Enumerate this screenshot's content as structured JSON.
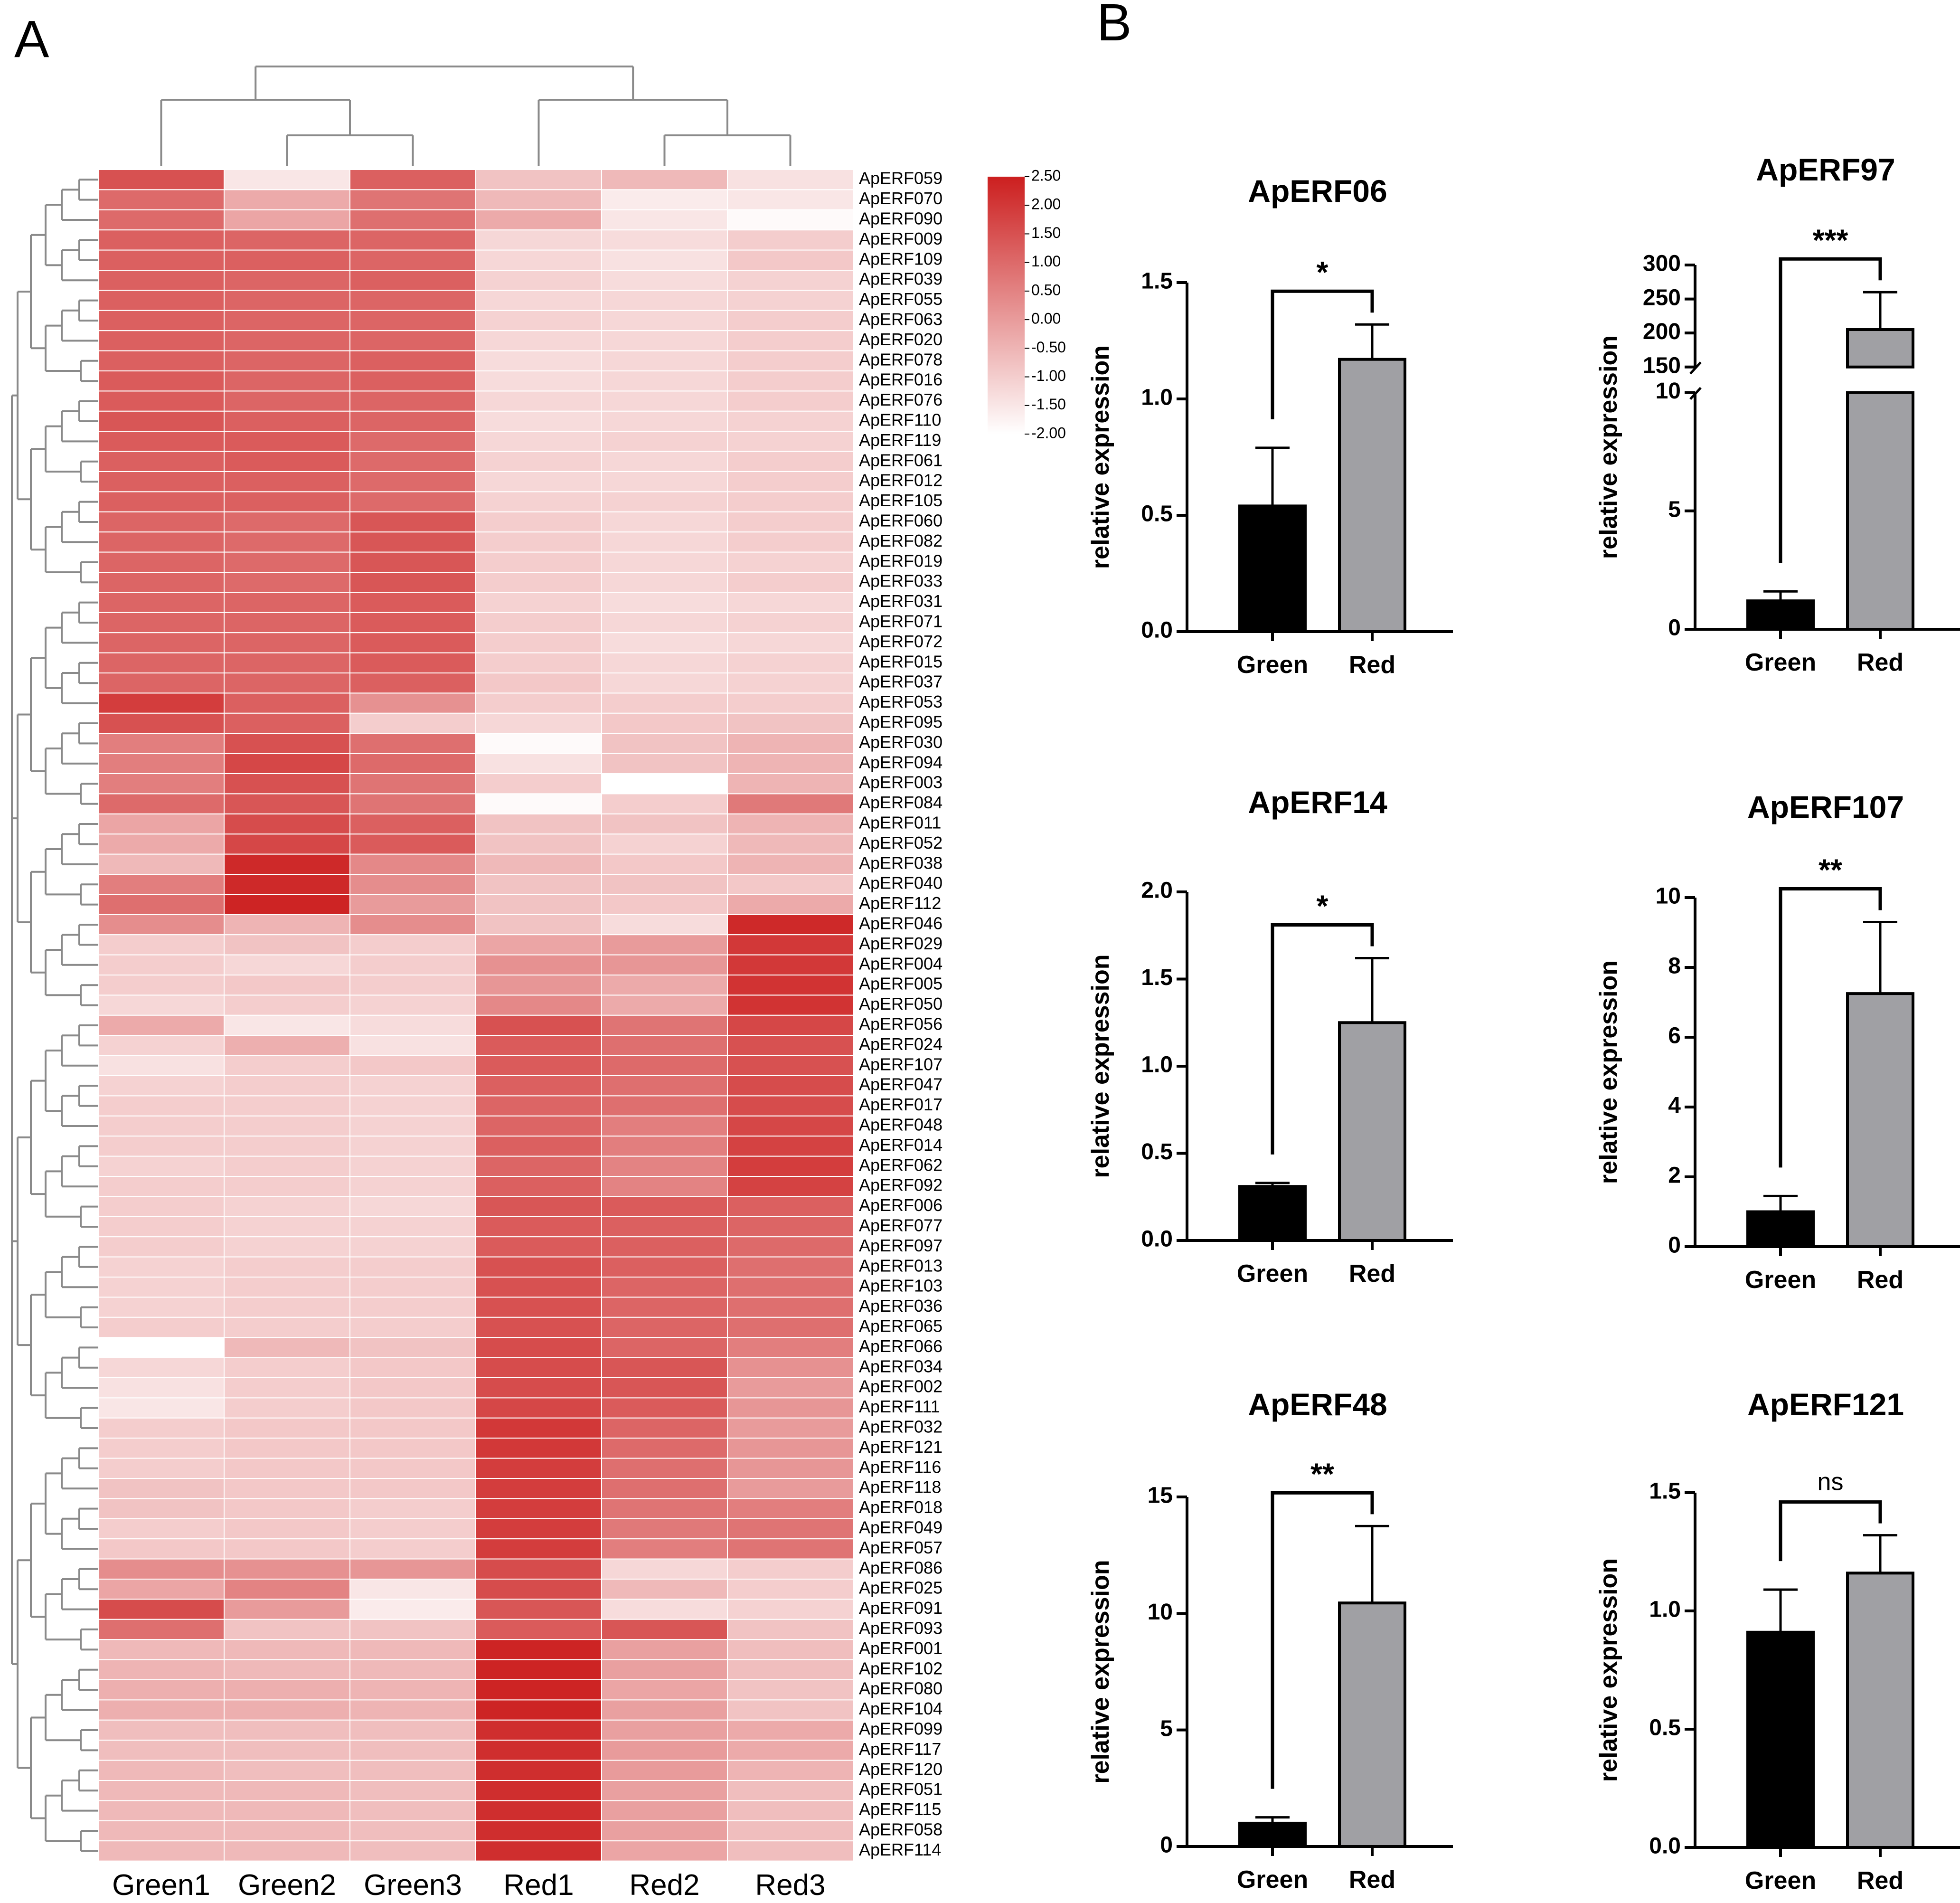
{
  "panels": {
    "a": "A",
    "b": "B"
  },
  "chart_data": [
    {
      "type": "heatmap",
      "title": "",
      "columns": [
        "Green1",
        "Green2",
        "Green3",
        "Red1",
        "Red2",
        "Red3"
      ],
      "colorscale": {
        "min": -2.0,
        "max": 2.5,
        "low_color": "#ffffff",
        "high_color": "#cc1f1f",
        "tick_labels": [
          "2.50",
          "2.00",
          "1.50",
          "1.00",
          "0.50",
          "0.00",
          "-0.50",
          "-1.00",
          "-1.50",
          "-2.00"
        ]
      },
      "rows": [
        {
          "gene": "ApERF059",
          "values": [
            1.5,
            -1.5,
            1.2,
            -0.8,
            -0.6,
            -1.4
          ]
        },
        {
          "gene": "ApERF070",
          "values": [
            1.0,
            -0.3,
            0.8,
            -0.6,
            -1.6,
            -1.5
          ]
        },
        {
          "gene": "ApERF090",
          "values": [
            1.0,
            -0.2,
            0.9,
            -0.3,
            -1.5,
            -1.9
          ]
        },
        {
          "gene": "ApERF009",
          "values": [
            1.2,
            1.1,
            1.1,
            -1.2,
            -1.3,
            -1.0
          ]
        },
        {
          "gene": "ApERF109",
          "values": [
            1.2,
            1.2,
            1.1,
            -1.2,
            -1.4,
            -0.9
          ]
        },
        {
          "gene": "ApERF039",
          "values": [
            1.2,
            1.1,
            1.2,
            -1.1,
            -1.3,
            -1.1
          ]
        },
        {
          "gene": "ApERF055",
          "values": [
            1.2,
            1.1,
            1.1,
            -1.2,
            -1.2,
            -1.1
          ]
        },
        {
          "gene": "ApERF063",
          "values": [
            1.2,
            1.1,
            1.1,
            -1.1,
            -1.2,
            -1.0
          ]
        },
        {
          "gene": "ApERF020",
          "values": [
            1.2,
            1.1,
            1.1,
            -1.2,
            -1.2,
            -1.0
          ]
        },
        {
          "gene": "ApERF078",
          "values": [
            1.2,
            1.1,
            1.2,
            -1.3,
            -1.2,
            -1.0
          ]
        },
        {
          "gene": "ApERF016",
          "values": [
            1.3,
            1.1,
            1.2,
            -1.3,
            -1.2,
            -1.0
          ]
        },
        {
          "gene": "ApERF076",
          "values": [
            1.3,
            1.1,
            1.1,
            -1.2,
            -1.2,
            -1.0
          ]
        },
        {
          "gene": "ApERF110",
          "values": [
            1.4,
            1.2,
            1.1,
            -1.3,
            -1.2,
            -1.1
          ]
        },
        {
          "gene": "ApERF119",
          "values": [
            1.3,
            1.3,
            1.0,
            -1.2,
            -1.1,
            -1.1
          ]
        },
        {
          "gene": "ApERF061",
          "values": [
            1.2,
            1.3,
            1.0,
            -1.1,
            -1.2,
            -1.0
          ]
        },
        {
          "gene": "ApERF012",
          "values": [
            1.2,
            1.2,
            1.0,
            -1.2,
            -1.2,
            -1.0
          ]
        },
        {
          "gene": "ApERF105",
          "values": [
            1.2,
            1.2,
            1.0,
            -1.1,
            -1.1,
            -1.0
          ]
        },
        {
          "gene": "ApERF060",
          "values": [
            1.1,
            1.0,
            1.4,
            -1.0,
            -1.2,
            -1.0
          ]
        },
        {
          "gene": "ApERF082",
          "values": [
            1.1,
            1.0,
            1.4,
            -1.0,
            -1.2,
            -1.0
          ]
        },
        {
          "gene": "ApERF019",
          "values": [
            1.1,
            1.0,
            1.4,
            -1.0,
            -1.2,
            -1.1
          ]
        },
        {
          "gene": "ApERF033",
          "values": [
            1.1,
            1.0,
            1.4,
            -1.0,
            -1.2,
            -1.0
          ]
        },
        {
          "gene": "ApERF031",
          "values": [
            1.1,
            1.1,
            1.3,
            -1.1,
            -1.3,
            -1.2
          ]
        },
        {
          "gene": "ApERF071",
          "values": [
            1.1,
            1.1,
            1.3,
            -1.0,
            -1.2,
            -1.1
          ]
        },
        {
          "gene": "ApERF072",
          "values": [
            1.1,
            1.1,
            1.3,
            -1.0,
            -1.3,
            -1.2
          ]
        },
        {
          "gene": "ApERF015",
          "values": [
            1.1,
            1.1,
            1.3,
            -1.0,
            -1.2,
            -1.1
          ]
        },
        {
          "gene": "ApERF037",
          "values": [
            1.1,
            1.1,
            1.2,
            -0.9,
            -1.2,
            -1.1
          ]
        },
        {
          "gene": "ApERF053",
          "values": [
            1.9,
            1.2,
            0.2,
            -1.0,
            -1.0,
            -1.0
          ]
        },
        {
          "gene": "ApERF095",
          "values": [
            1.5,
            1.2,
            -1.0,
            -1.2,
            -0.9,
            -0.8
          ]
        },
        {
          "gene": "ApERF030",
          "values": [
            0.6,
            1.5,
            0.9,
            -1.9,
            -0.8,
            -0.5
          ]
        },
        {
          "gene": "ApERF094",
          "values": [
            0.6,
            1.7,
            1.0,
            -1.4,
            -0.8,
            -0.5
          ]
        },
        {
          "gene": "ApERF003",
          "values": [
            0.6,
            1.5,
            0.8,
            -1.0,
            -2.0,
            -0.5
          ]
        },
        {
          "gene": "ApERF084",
          "values": [
            1.0,
            1.4,
            0.8,
            -1.9,
            -1.0,
            0.7
          ]
        },
        {
          "gene": "ApERF011",
          "values": [
            -0.2,
            1.6,
            1.2,
            -0.8,
            -0.8,
            -0.5
          ]
        },
        {
          "gene": "ApERF052",
          "values": [
            -0.3,
            1.7,
            1.3,
            -0.8,
            -1.1,
            -0.6
          ]
        },
        {
          "gene": "ApERF038",
          "values": [
            -0.6,
            2.3,
            0.4,
            -0.6,
            -0.9,
            -0.5
          ]
        },
        {
          "gene": "ApERF040",
          "values": [
            0.6,
            2.3,
            0.3,
            -0.8,
            -0.8,
            -0.9
          ]
        },
        {
          "gene": "ApERF112",
          "values": [
            0.9,
            2.4,
            0.0,
            -0.8,
            -0.9,
            -0.3
          ]
        },
        {
          "gene": "ApERF046",
          "values": [
            0.3,
            -0.5,
            0.3,
            -0.8,
            -1.3,
            2.3
          ]
        },
        {
          "gene": "ApERF029",
          "values": [
            -1.0,
            -0.8,
            -1.0,
            -0.2,
            0.0,
            2.0
          ]
        },
        {
          "gene": "ApERF004",
          "values": [
            -1.0,
            -1.2,
            -1.0,
            0.2,
            0.1,
            2.0
          ]
        },
        {
          "gene": "ApERF005",
          "values": [
            -1.0,
            -0.9,
            -1.0,
            0.1,
            -0.3,
            2.1
          ]
        },
        {
          "gene": "ApERF050",
          "values": [
            -1.2,
            -1.0,
            -1.1,
            0.4,
            -0.3,
            2.1
          ]
        },
        {
          "gene": "ApERF056",
          "values": [
            -0.3,
            -1.5,
            -1.3,
            1.5,
            0.8,
            1.7
          ]
        },
        {
          "gene": "ApERF024",
          "values": [
            -1.1,
            -0.4,
            -1.4,
            1.3,
            0.9,
            1.5
          ]
        },
        {
          "gene": "ApERF107",
          "values": [
            -1.4,
            -1.0,
            -0.9,
            1.3,
            1.0,
            1.5
          ]
        },
        {
          "gene": "ApERF047",
          "values": [
            -1.1,
            -1.0,
            -1.1,
            1.2,
            0.9,
            1.6
          ]
        },
        {
          "gene": "ApERF017",
          "values": [
            -1.0,
            -1.0,
            -1.1,
            1.1,
            0.9,
            1.6
          ]
        },
        {
          "gene": "ApERF048",
          "values": [
            -1.0,
            -1.0,
            -1.1,
            1.1,
            0.6,
            1.7
          ]
        },
        {
          "gene": "ApERF014",
          "values": [
            -1.0,
            -1.0,
            -1.1,
            1.2,
            0.6,
            1.8
          ]
        },
        {
          "gene": "ApERF062",
          "values": [
            -1.1,
            -1.0,
            -1.1,
            1.1,
            0.5,
            1.9
          ]
        },
        {
          "gene": "ApERF092",
          "values": [
            -1.0,
            -1.0,
            -1.1,
            1.2,
            0.5,
            1.8
          ]
        },
        {
          "gene": "ApERF006",
          "values": [
            -1.0,
            -1.1,
            -1.2,
            1.4,
            1.3,
            1.2
          ]
        },
        {
          "gene": "ApERF077",
          "values": [
            -1.0,
            -1.1,
            -1.1,
            1.3,
            1.2,
            1.1
          ]
        },
        {
          "gene": "ApERF097",
          "values": [
            -1.0,
            -1.1,
            -1.1,
            1.3,
            1.2,
            1.0
          ]
        },
        {
          "gene": "ApERF013",
          "values": [
            -1.1,
            -1.0,
            -1.0,
            1.5,
            1.2,
            0.9
          ]
        },
        {
          "gene": "ApERF103",
          "values": [
            -1.1,
            -1.0,
            -1.0,
            1.5,
            1.1,
            0.9
          ]
        },
        {
          "gene": "ApERF036",
          "values": [
            -1.1,
            -1.0,
            -1.0,
            1.5,
            1.1,
            0.9
          ]
        },
        {
          "gene": "ApERF065",
          "values": [
            -1.0,
            -1.0,
            -1.0,
            1.5,
            1.1,
            0.9
          ]
        },
        {
          "gene": "ApERF066",
          "values": [
            -2.0,
            -0.6,
            -0.8,
            1.6,
            1.1,
            0.6
          ]
        },
        {
          "gene": "ApERF034",
          "values": [
            -1.2,
            -1.0,
            -0.9,
            1.6,
            1.4,
            0.2
          ]
        },
        {
          "gene": "ApERF002",
          "values": [
            -1.4,
            -1.0,
            -0.9,
            1.6,
            1.4,
            0.0
          ]
        },
        {
          "gene": "ApERF111",
          "values": [
            -1.5,
            -1.0,
            -0.9,
            1.7,
            1.3,
            0.1
          ]
        },
        {
          "gene": "ApERF032",
          "values": [
            -1.0,
            -0.9,
            -0.9,
            2.0,
            1.1,
            0.0
          ]
        },
        {
          "gene": "ApERF121",
          "values": [
            -1.0,
            -0.9,
            -0.9,
            2.0,
            1.0,
            0.1
          ]
        },
        {
          "gene": "ApERF116",
          "values": [
            -1.0,
            -0.9,
            -0.9,
            1.9,
            0.9,
            0.1
          ]
        },
        {
          "gene": "ApERF118",
          "values": [
            -0.8,
            -0.9,
            -0.9,
            1.9,
            0.9,
            0.0
          ]
        },
        {
          "gene": "ApERF018",
          "values": [
            -0.8,
            -0.9,
            -1.0,
            1.9,
            0.8,
            0.6
          ]
        },
        {
          "gene": "ApERF049",
          "values": [
            -1.0,
            -0.9,
            -1.0,
            1.9,
            0.7,
            0.8
          ]
        },
        {
          "gene": "ApERF057",
          "values": [
            -0.9,
            -0.9,
            -1.0,
            1.9,
            0.6,
            0.8
          ]
        },
        {
          "gene": "ApERF086",
          "values": [
            0.3,
            0.2,
            0.1,
            1.6,
            -1.2,
            -1.0
          ]
        },
        {
          "gene": "ApERF025",
          "values": [
            -0.2,
            0.5,
            -1.5,
            1.6,
            -0.6,
            -1.0
          ]
        },
        {
          "gene": "ApERF091",
          "values": [
            1.6,
            0.0,
            -1.6,
            1.4,
            -1.3,
            -1.1
          ]
        },
        {
          "gene": "ApERF093",
          "values": [
            0.9,
            -0.8,
            -0.8,
            1.3,
            1.4,
            -0.8
          ]
        },
        {
          "gene": "ApERF001",
          "values": [
            -0.6,
            -0.6,
            -0.6,
            2.4,
            -0.1,
            -0.7
          ]
        },
        {
          "gene": "ApERF102",
          "values": [
            -0.5,
            -0.6,
            -0.6,
            2.4,
            -0.1,
            -0.7
          ]
        },
        {
          "gene": "ApERF080",
          "values": [
            -0.4,
            -0.4,
            -0.5,
            2.4,
            -0.2,
            -0.8
          ]
        },
        {
          "gene": "ApERF104",
          "values": [
            -0.4,
            -0.4,
            -0.5,
            2.4,
            -0.1,
            -0.8
          ]
        },
        {
          "gene": "ApERF099",
          "values": [
            -0.7,
            -0.7,
            -0.7,
            2.2,
            -0.1,
            -0.3
          ]
        },
        {
          "gene": "ApERF117",
          "values": [
            -0.7,
            -0.7,
            -0.7,
            2.2,
            0.0,
            -0.3
          ]
        },
        {
          "gene": "ApERF120",
          "values": [
            -0.6,
            -0.7,
            -0.7,
            2.2,
            0.0,
            -0.5
          ]
        },
        {
          "gene": "ApERF051",
          "values": [
            -0.6,
            -0.6,
            -0.7,
            2.2,
            -0.1,
            -0.7
          ]
        },
        {
          "gene": "ApERF115",
          "values": [
            -0.6,
            -0.6,
            -0.7,
            2.2,
            -0.1,
            -0.7
          ]
        },
        {
          "gene": "ApERF058",
          "values": [
            -0.6,
            -0.6,
            -0.7,
            2.2,
            -0.1,
            -0.7
          ]
        },
        {
          "gene": "ApERF114",
          "values": [
            -0.6,
            -0.6,
            -0.7,
            2.2,
            -0.2,
            -0.7
          ]
        }
      ]
    },
    {
      "type": "bar",
      "title": "ApERF06",
      "ylabel": "relative expression",
      "categories": [
        "Green",
        "Red"
      ],
      "values": [
        0.54,
        1.17
      ],
      "errors": [
        0.25,
        0.15
      ],
      "ylim": [
        0,
        1.5
      ],
      "yticks": [
        "0.0",
        "0.5",
        "1.0",
        "1.5"
      ],
      "tick_values": [
        0,
        0.5,
        1.0,
        1.5
      ],
      "significance": "*"
    },
    {
      "type": "bar",
      "title": "ApERF97",
      "ylabel": "relative expression",
      "categories": [
        "Green",
        "Red"
      ],
      "values": [
        1.2,
        205
      ],
      "errors": [
        0.4,
        55
      ],
      "axis_break": {
        "lower_max": 10,
        "upper_min": 150,
        "upper_max": 300
      },
      "yticks": [
        "0",
        "5",
        "10",
        "150",
        "200",
        "250",
        "300"
      ],
      "tick_values": [
        0,
        5,
        10,
        150,
        200,
        250,
        300
      ],
      "significance": "***"
    },
    {
      "type": "bar",
      "title": "ApERF14",
      "ylabel": "relative expression",
      "categories": [
        "Green",
        "Red"
      ],
      "values": [
        0.31,
        1.25
      ],
      "errors": [
        0.02,
        0.37
      ],
      "ylim": [
        0,
        2.0
      ],
      "yticks": [
        "0.0",
        "0.5",
        "1.0",
        "1.5",
        "2.0"
      ],
      "tick_values": [
        0,
        0.5,
        1.0,
        1.5,
        2.0
      ],
      "significance": "*"
    },
    {
      "type": "bar",
      "title": "ApERF107",
      "ylabel": "relative expression",
      "categories": [
        "Green",
        "Red"
      ],
      "values": [
        1.0,
        7.25
      ],
      "errors": [
        0.45,
        2.05
      ],
      "ylim": [
        0,
        10
      ],
      "yticks": [
        "0",
        "2",
        "4",
        "6",
        "8",
        "10"
      ],
      "tick_values": [
        0,
        2,
        4,
        6,
        8,
        10
      ],
      "significance": "**"
    },
    {
      "type": "bar",
      "title": "ApERF48",
      "ylabel": "relative expression",
      "categories": [
        "Green",
        "Red"
      ],
      "values": [
        1.0,
        10.45
      ],
      "errors": [
        0.25,
        3.3
      ],
      "ylim": [
        0,
        15
      ],
      "yticks": [
        "0",
        "5",
        "10",
        "15"
      ],
      "tick_values": [
        0,
        5,
        10,
        15
      ],
      "significance": "**"
    },
    {
      "type": "bar",
      "title": "ApERF121",
      "ylabel": "relative expression",
      "categories": [
        "Green",
        "Red"
      ],
      "values": [
        0.91,
        1.16
      ],
      "errors": [
        0.18,
        0.16
      ],
      "ylim": [
        0,
        1.5
      ],
      "yticks": [
        "0.0",
        "0.5",
        "1.0",
        "1.5"
      ],
      "tick_values": [
        0,
        0.5,
        1.0,
        1.5
      ],
      "significance": "ns"
    }
  ],
  "colors": {
    "green_bar": "#000000",
    "red_bar": "#a0a0a4",
    "tree": "#8a8a8a"
  }
}
